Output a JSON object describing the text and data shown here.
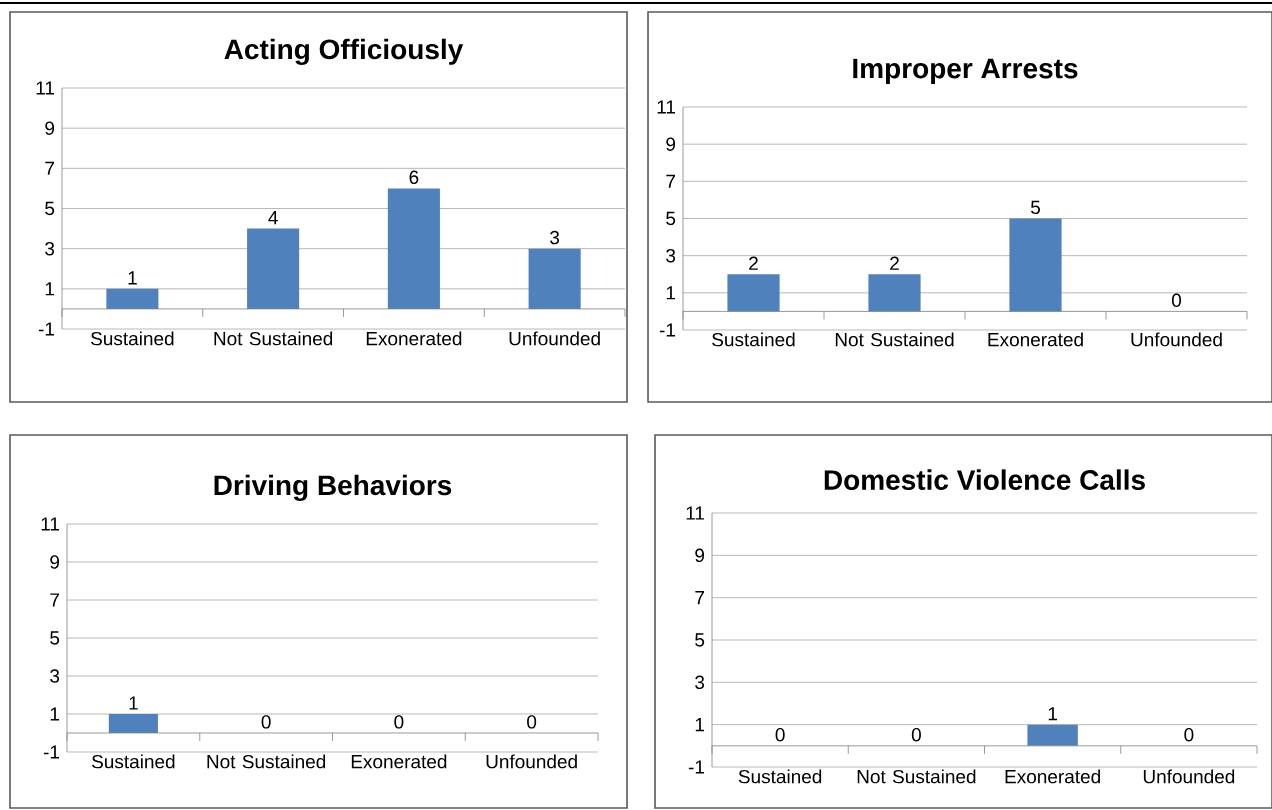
{
  "chart_data": [
    {
      "type": "bar",
      "title": "Acting Officiously",
      "categories": [
        "Sustained",
        "Not Sustained",
        "Exonerated",
        "Unfounded"
      ],
      "values": [
        1,
        4,
        6,
        3
      ],
      "color": "#4f81bd",
      "ylim": [
        -1,
        11
      ],
      "yticks": [
        -1,
        1,
        3,
        5,
        7,
        9,
        11
      ],
      "grid": "y",
      "data_labels": true
    },
    {
      "type": "bar",
      "title": "Improper Arrests",
      "categories": [
        "Sustained",
        "Not Sustained",
        "Exonerated",
        "Unfounded"
      ],
      "values": [
        2,
        2,
        5,
        0
      ],
      "color": "#4f81bd",
      "ylim": [
        -1,
        11
      ],
      "yticks": [
        -1,
        1,
        3,
        5,
        7,
        9,
        11
      ],
      "grid": "y",
      "data_labels": true
    },
    {
      "type": "bar",
      "title": "Driving Behaviors",
      "categories": [
        "Sustained",
        "Not Sustained",
        "Exonerated",
        "Unfounded"
      ],
      "values": [
        1,
        0,
        0,
        0
      ],
      "color": "#4f81bd",
      "ylim": [
        -1,
        11
      ],
      "yticks": [
        -1,
        1,
        3,
        5,
        7,
        9,
        11
      ],
      "grid": "y",
      "data_labels": true
    },
    {
      "type": "bar",
      "title": "Domestic Violence Calls",
      "categories": [
        "Sustained",
        "Not Sustained",
        "Exonerated",
        "Unfounded"
      ],
      "values": [
        0,
        0,
        1,
        0
      ],
      "color": "#4f81bd",
      "ylim": [
        -1,
        11
      ],
      "yticks": [
        -1,
        1,
        3,
        5,
        7,
        9,
        11
      ],
      "grid": "y",
      "data_labels": true
    }
  ]
}
